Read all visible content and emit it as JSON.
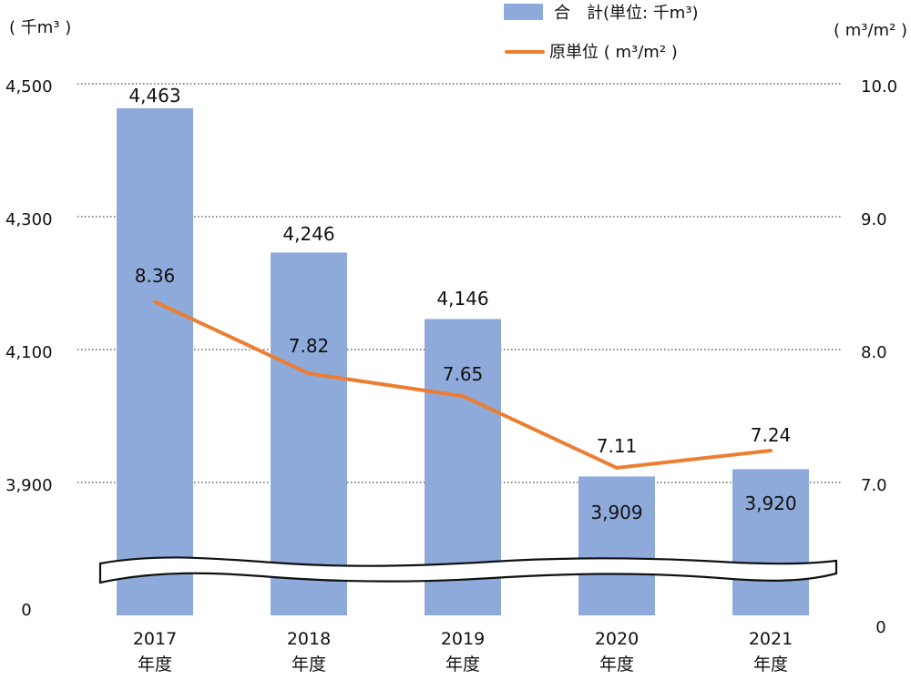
{
  "chart_data": {
    "type": "bar",
    "categories": [
      [
        "2017",
        "年度"
      ],
      [
        "2018",
        "年度"
      ],
      [
        "2019",
        "年度"
      ],
      [
        "2020",
        "年度"
      ],
      [
        "2021",
        "年度"
      ]
    ],
    "series": [
      {
        "name": "合　計(単位: 千m³)",
        "type": "bar",
        "axis": "left",
        "values": [
          4463,
          4246,
          4146,
          3909,
          3920
        ],
        "color": "#8eaadb",
        "label_color": "#e31b1b"
      },
      {
        "name": "原単位 ( m³/m² )",
        "type": "line",
        "axis": "right",
        "values": [
          8.36,
          7.82,
          7.65,
          7.11,
          7.24
        ],
        "color": "#ed7d31",
        "label_color": "#111111"
      }
    ],
    "left_axis": {
      "unit_label": "( 千m³ )",
      "ticks": [
        "4,500",
        "4,300",
        "4,100",
        "3,900"
      ],
      "tick_values": [
        4500,
        4300,
        4100,
        3900
      ],
      "zero_label": "0",
      "break_after": 3900
    },
    "right_axis": {
      "unit_label": "( m³/m² )",
      "ticks": [
        "10.0",
        "9.0",
        "8.0",
        "7.0"
      ],
      "tick_values": [
        10.0,
        9.0,
        8.0,
        7.0
      ],
      "zero_label": "0"
    },
    "grid": true,
    "legend_position": "top-center",
    "axis_break": true
  }
}
